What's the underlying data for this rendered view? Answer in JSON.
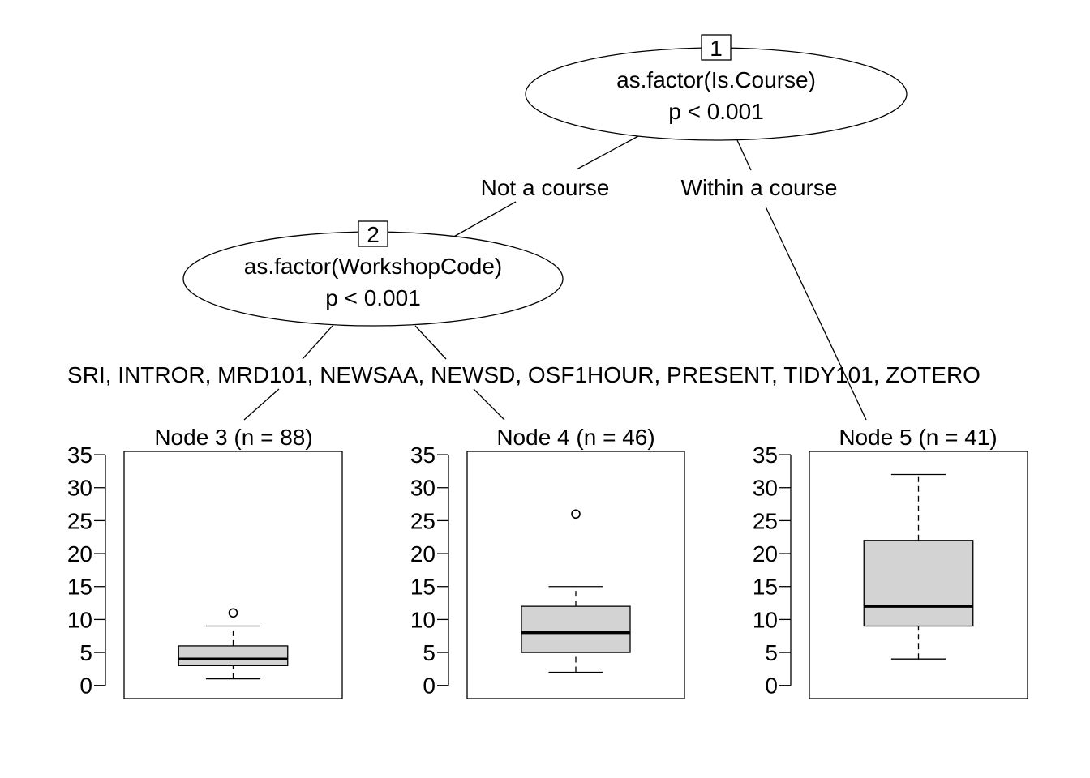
{
  "chart_data": {
    "type": "decision-tree",
    "inner_nodes": [
      {
        "id": "1",
        "label": "as.factor(Is.Course)",
        "pvalue": "p < 0.001"
      },
      {
        "id": "2",
        "label": "as.factor(WorkshopCode)",
        "pvalue": "p < 0.001"
      }
    ],
    "edges": [
      {
        "from": "1",
        "to": "2",
        "label": "Not a course"
      },
      {
        "from": "1",
        "to": "5",
        "label": "Within a course"
      },
      {
        "from": "2",
        "to": "3",
        "label": "SRI, INTROR, MRD101, NEWSAA, NEWSD, OSF1HOUR, PRESENT, TIDY101, ZOTERO"
      },
      {
        "from": "2",
        "to": "4",
        "label": ""
      }
    ],
    "terminal_nodes": [
      {
        "id": "3",
        "title": "Node 3 (n = 88)",
        "min": 1,
        "q1": 3,
        "median": 4,
        "q3": 6,
        "max": 9,
        "outliers": [
          11
        ]
      },
      {
        "id": "4",
        "title": "Node 4 (n = 46)",
        "min": 2,
        "q1": 5,
        "median": 8,
        "q3": 12,
        "max": 15,
        "outliers": [
          26
        ]
      },
      {
        "id": "5",
        "title": "Node 5 (n = 41)",
        "min": 4,
        "q1": 9,
        "median": 12,
        "q3": 22,
        "max": 32,
        "outliers": []
      }
    ],
    "y_ticks": [
      0,
      5,
      10,
      15,
      20,
      25,
      30,
      35
    ],
    "ylim": [
      -2,
      35.5
    ],
    "box_fill": "#d3d3d3",
    "line_color": "#000000"
  }
}
